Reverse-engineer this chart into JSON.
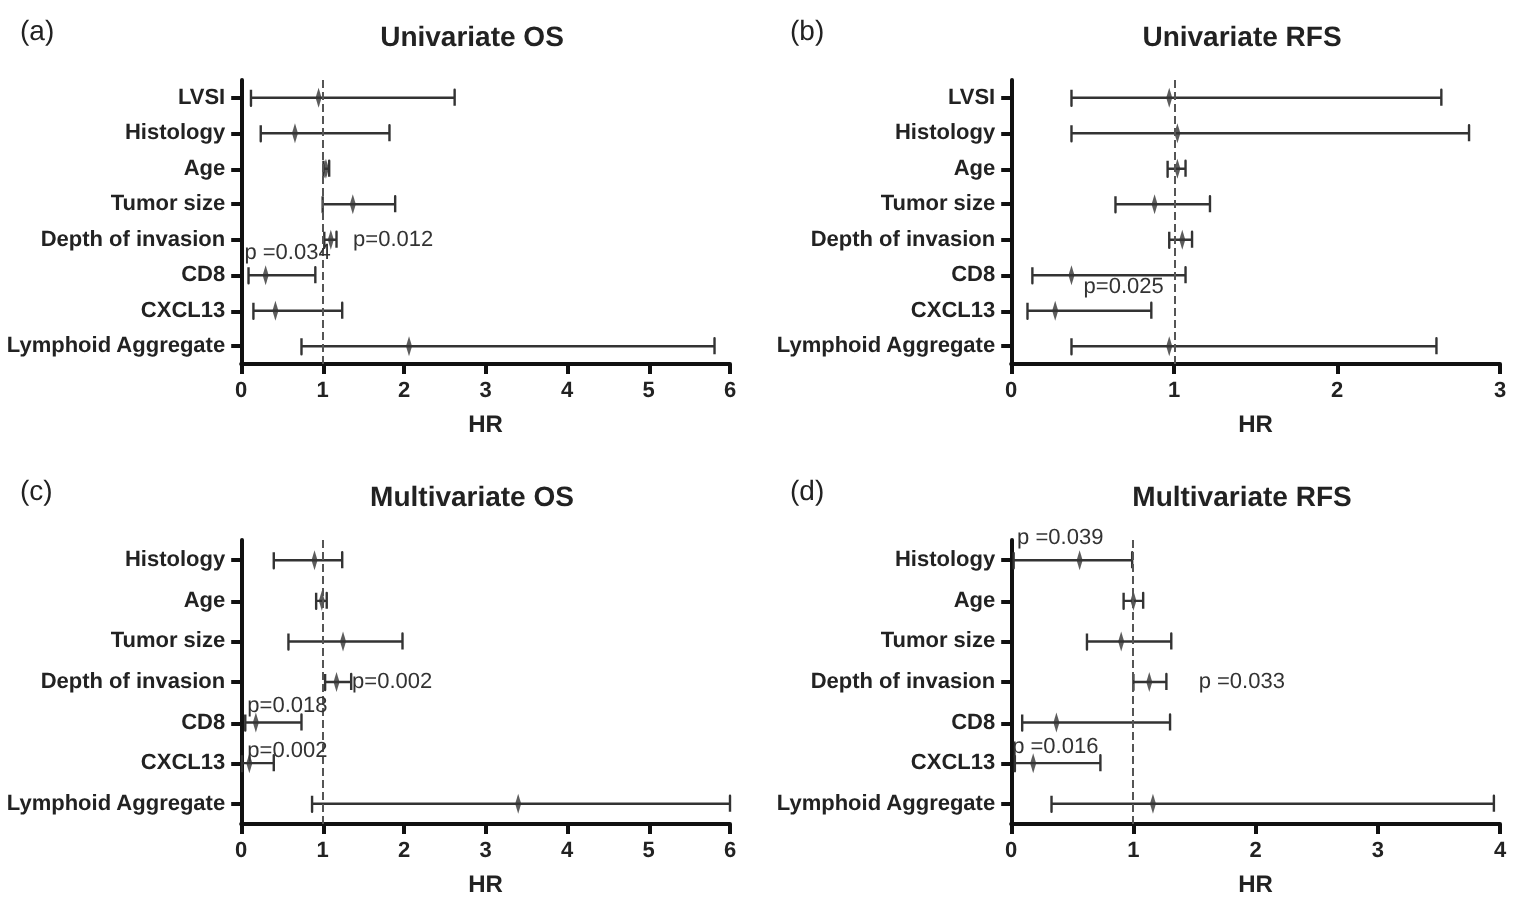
{
  "chart_data": [
    {
      "type": "scatter",
      "orientation": "horizontal",
      "title": "Univariate OS",
      "xlabel": "HR",
      "categories": [
        "LVSI",
        "Histology",
        "Age",
        "Tumor size",
        "Depth of invasion",
        "CD8",
        "CXCL13",
        "Lymphoid Aggregate"
      ],
      "series": [
        {
          "color": "#333333",
          "values": [
            0.95,
            0.66,
            1.04,
            1.37,
            1.1,
            0.3,
            0.42,
            2.06
          ],
          "errors": [
            [
              0.12,
              2.62
            ],
            [
              0.24,
              1.82
            ],
            [
              1.01,
              1.08
            ],
            [
              1.0,
              1.89
            ],
            [
              1.02,
              1.17
            ],
            [
              0.09,
              0.91
            ],
            [
              0.15,
              1.24
            ],
            [
              0.74,
              5.81
            ]
          ]
        }
      ],
      "xlim": [
        0,
        6
      ],
      "xticks": [
        0,
        1,
        2,
        3,
        4,
        5,
        6
      ],
      "ref_lines": [
        {
          "axis": "x",
          "value": 1,
          "line_style": "dashed",
          "color": "#555555"
        }
      ],
      "annotations": [
        "(a)",
        "p =0.034",
        "p=0.012"
      ]
    },
    {
      "type": "scatter",
      "orientation": "horizontal",
      "title": "Univariate RFS",
      "xlabel": "HR",
      "categories": [
        "LVSI",
        "Histology",
        "Age",
        "Tumor size",
        "Depth of invasion",
        "CD8",
        "CXCL13",
        "Lymphoid Aggregate"
      ],
      "series": [
        {
          "color": "#333333",
          "values": [
            0.97,
            1.02,
            1.02,
            0.88,
            1.05,
            0.37,
            0.27,
            0.97
          ],
          "errors": [
            [
              0.37,
              2.64
            ],
            [
              0.37,
              2.81
            ],
            [
              0.96,
              1.07
            ],
            [
              0.64,
              1.22
            ],
            [
              0.97,
              1.11
            ],
            [
              0.13,
              1.07
            ],
            [
              0.1,
              0.86
            ],
            [
              0.37,
              2.61
            ]
          ]
        }
      ],
      "xlim": [
        0,
        3
      ],
      "xticks": [
        0,
        1,
        2,
        3
      ],
      "ref_lines": [
        {
          "axis": "x",
          "value": 1,
          "line_style": "dashed",
          "color": "#555555"
        }
      ],
      "annotations": [
        "(b)",
        "p=0.025"
      ]
    },
    {
      "type": "scatter",
      "orientation": "horizontal",
      "title": "Multivariate OS",
      "xlabel": "HR",
      "categories": [
        "Histology",
        "Age",
        "Tumor size",
        "Depth of invasion",
        "CD8",
        "CXCL13",
        "Lymphoid Aggregate"
      ],
      "series": [
        {
          "color": "#333333",
          "values": [
            0.9,
            0.99,
            1.25,
            1.17,
            0.18,
            0.1,
            3.4
          ],
          "errors": [
            [
              0.4,
              1.24
            ],
            [
              0.92,
              1.05
            ],
            [
              0.58,
              1.98
            ],
            [
              1.03,
              1.35
            ],
            [
              0.05,
              0.74
            ],
            [
              0.01,
              0.4
            ],
            [
              0.87,
              6.0
            ]
          ]
        }
      ],
      "xlim": [
        0,
        6
      ],
      "xticks": [
        0,
        1,
        2,
        3,
        4,
        5,
        6
      ],
      "ref_lines": [
        {
          "axis": "x",
          "value": 1,
          "line_style": "dashed",
          "color": "#555555"
        }
      ],
      "annotations": [
        "(c)",
        "p=0.002",
        "p=0.018",
        "p=0.002"
      ]
    },
    {
      "type": "scatter",
      "orientation": "horizontal",
      "title": "Multivariate RFS",
      "xlabel": "HR",
      "categories": [
        "Histology",
        "Age",
        "Tumor size",
        "Depth of invasion",
        "CD8",
        "CXCL13",
        "Lymphoid Aggregate"
      ],
      "series": [
        {
          "color": "#333333",
          "values": [
            0.56,
            1.0,
            0.9,
            1.13,
            0.37,
            0.18,
            1.16
          ],
          "errors": [
            [
              0.02,
              0.99
            ],
            [
              0.92,
              1.08
            ],
            [
              0.62,
              1.31
            ],
            [
              1.0,
              1.27
            ],
            [
              0.09,
              1.3
            ],
            [
              0.03,
              0.73
            ],
            [
              0.33,
              3.95
            ]
          ]
        }
      ],
      "xlim": [
        0,
        4
      ],
      "xticks": [
        0,
        1,
        2,
        3,
        4
      ],
      "ref_lines": [
        {
          "axis": "x",
          "value": 1,
          "line_style": "dashed",
          "color": "#555555"
        }
      ],
      "annotations": [
        "(d)",
        "p =0.039",
        "p =0.033",
        "p =0.016"
      ]
    }
  ]
}
